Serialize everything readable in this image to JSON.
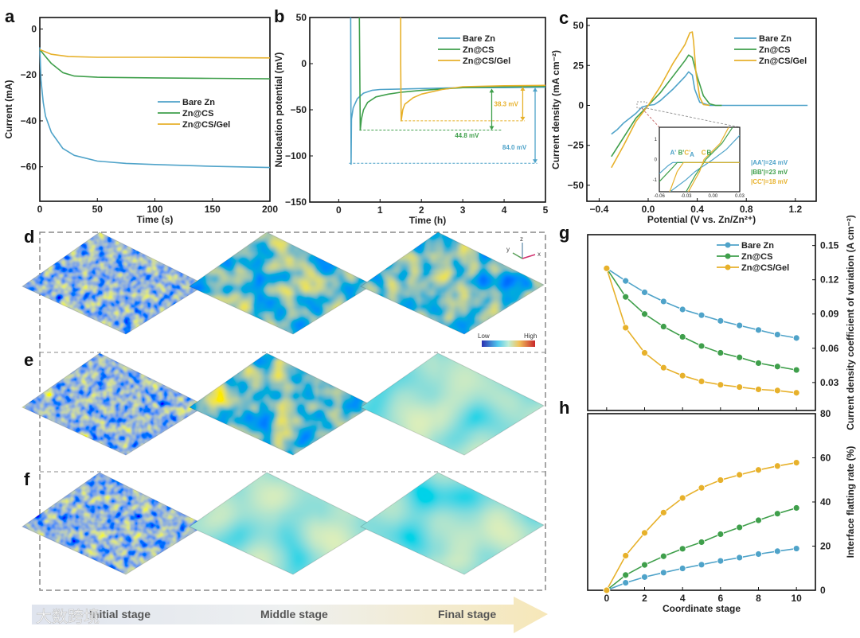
{
  "colors": {
    "bare": "#4fa3c9",
    "cs": "#3f9f4b",
    "gel": "#e7b12b"
  },
  "panels": {
    "a": "a",
    "b": "b",
    "c": "c",
    "d": "d",
    "e": "e",
    "f": "f",
    "g": "g",
    "h": "h"
  },
  "heatmap": {
    "legend_low": "Low",
    "legend_high": "High",
    "axis_x": "x",
    "axis_y": "y",
    "axis_z": "z"
  },
  "stages": {
    "initial": "Initial stage",
    "middle": "Middle stage",
    "final": "Final stage"
  },
  "watermark": "大数跨境",
  "chart_data": [
    {
      "id": "a",
      "type": "line",
      "xlabel": "Time (s)",
      "ylabel": "Current (mA)",
      "xlim": [
        0,
        200
      ],
      "ylim": [
        -75,
        5
      ],
      "xticks": [
        0,
        50,
        100,
        150,
        200
      ],
      "yticks": [
        0,
        -20,
        -40,
        -60
      ],
      "legend_position": "center-right",
      "series": [
        {
          "name": "Bare Zn",
          "color": "#4fa3c9",
          "points": [
            [
              0,
              -8
            ],
            [
              1,
              -22
            ],
            [
              3,
              -32
            ],
            [
              5,
              -38
            ],
            [
              10,
              -45
            ],
            [
              20,
              -52
            ],
            [
              30,
              -55
            ],
            [
              50,
              -57.5
            ],
            [
              75,
              -58.5
            ],
            [
              100,
              -59
            ],
            [
              150,
              -59.8
            ],
            [
              200,
              -60.3
            ]
          ]
        },
        {
          "name": "Zn@CS",
          "color": "#3f9f4b",
          "points": [
            [
              0,
              -9
            ],
            [
              5,
              -12
            ],
            [
              10,
              -15
            ],
            [
              20,
              -19
            ],
            [
              30,
              -20.5
            ],
            [
              50,
              -21
            ],
            [
              100,
              -21.3
            ],
            [
              150,
              -21.5
            ],
            [
              200,
              -21.7
            ]
          ]
        },
        {
          "name": "Zn@CS/Gel",
          "color": "#e7b12b",
          "points": [
            [
              0,
              -9
            ],
            [
              10,
              -11
            ],
            [
              25,
              -12
            ],
            [
              50,
              -12.3
            ],
            [
              100,
              -12.3
            ],
            [
              200,
              -12.6
            ]
          ]
        }
      ]
    },
    {
      "id": "b",
      "type": "line",
      "xlabel": "Time (h)",
      "ylabel": "Nucleation potential (mV)",
      "xlim": [
        -0.7,
        5
      ],
      "ylim": [
        -150,
        50
      ],
      "xticks": [
        0,
        1,
        2,
        3,
        4,
        5
      ],
      "yticks": [
        50,
        0,
        -50,
        -100,
        -150
      ],
      "legend_position": "top-right",
      "series": [
        {
          "name": "Bare Zn",
          "color": "#4fa3c9",
          "points": [
            [
              0.29,
              50
            ],
            [
              0.3,
              -109
            ],
            [
              0.31,
              -60
            ],
            [
              0.35,
              -48
            ],
            [
              0.45,
              -38
            ],
            [
              0.6,
              -32
            ],
            [
              0.8,
              -29
            ],
            [
              1,
              -28
            ],
            [
              2,
              -27
            ],
            [
              3,
              -26
            ],
            [
              4,
              -26
            ],
            [
              5,
              -25.5
            ]
          ]
        },
        {
          "name": "Zn@CS",
          "color": "#3f9f4b",
          "points": [
            [
              0.5,
              50
            ],
            [
              0.52,
              -72
            ],
            [
              0.55,
              -60
            ],
            [
              0.6,
              -50
            ],
            [
              0.7,
              -42
            ],
            [
              0.9,
              -36
            ],
            [
              1.2,
              -33
            ],
            [
              1.5,
              -31
            ],
            [
              2,
              -29
            ],
            [
              3,
              -26
            ],
            [
              4,
              -25
            ],
            [
              5,
              -24.5
            ]
          ]
        },
        {
          "name": "Zn@CS/Gel",
          "color": "#e7b12b",
          "points": [
            [
              1.5,
              50
            ],
            [
              1.5,
              0
            ],
            [
              1.51,
              -62
            ],
            [
              1.55,
              -50
            ],
            [
              1.6,
              -44
            ],
            [
              1.8,
              -37
            ],
            [
              2,
              -33
            ],
            [
              2.5,
              -28
            ],
            [
              3,
              -25
            ],
            [
              4,
              -24
            ],
            [
              5,
              -23.5
            ]
          ]
        }
      ],
      "annotations": [
        {
          "label": "38.3 mV",
          "color": "#e7b12b",
          "arrow_x": 4.45,
          "from": -25,
          "to": -62,
          "dash_from_x": 1.5,
          "dash_to_x": 4.5,
          "label_x": 4.05,
          "label_y": -46
        },
        {
          "label": "44.8 mV",
          "color": "#3f9f4b",
          "arrow_x": 3.7,
          "from": -27,
          "to": -72,
          "dash_from_x": 0.5,
          "dash_to_x": 3.95,
          "label_x": 3.1,
          "label_y": -80
        },
        {
          "label": "84.0 mV",
          "color": "#4fa3c9",
          "arrow_x": 4.75,
          "from": -26,
          "to": -108,
          "dash_from_x": 0.25,
          "dash_to_x": 4.8,
          "label_x": 4.25,
          "label_y": -93
        }
      ]
    },
    {
      "id": "c",
      "type": "line",
      "xlabel": "Potential (V vs. Zn/Zn²⁺)",
      "ylabel": "Current density (mA cm⁻²)",
      "xlim": [
        -0.5,
        1.37
      ],
      "ylim": [
        -60,
        54.5
      ],
      "xticks": [
        -0.4,
        0.0,
        0.4,
        0.8,
        1.2
      ],
      "xtick_labels": [
        "−0.4",
        "0.0",
        "0.4",
        "0.8",
        "1.2"
      ],
      "yticks": [
        50,
        25,
        0,
        -25,
        -50
      ],
      "legend_position": "top-right",
      "series": [
        {
          "name": "Bare Zn",
          "color": "#4fa3c9",
          "points": [
            [
              -0.3,
              -18
            ],
            [
              -0.25,
              -15
            ],
            [
              -0.2,
              -11
            ],
            [
              -0.1,
              -5
            ],
            [
              -0.05,
              -1
            ],
            [
              0,
              0
            ],
            [
              0.05,
              0.5
            ],
            [
              0.1,
              3
            ],
            [
              0.2,
              10
            ],
            [
              0.3,
              18
            ],
            [
              0.33,
              21
            ],
            [
              0.36,
              19
            ],
            [
              0.38,
              10
            ],
            [
              0.42,
              2
            ],
            [
              0.5,
              0
            ],
            [
              1.3,
              0
            ]
          ]
        },
        {
          "name": "Zn@CS",
          "color": "#3f9f4b",
          "points": [
            [
              -0.3,
              -32
            ],
            [
              -0.2,
              -20
            ],
            [
              -0.1,
              -8
            ],
            [
              0,
              0
            ],
            [
              0.1,
              8
            ],
            [
              0.2,
              18
            ],
            [
              0.3,
              28
            ],
            [
              0.33,
              31.5
            ],
            [
              0.36,
              30
            ],
            [
              0.4,
              18
            ],
            [
              0.45,
              6
            ],
            [
              0.5,
              1
            ],
            [
              0.55,
              0
            ],
            [
              0.6,
              0
            ]
          ]
        },
        {
          "name": "Zn@CS/Gel",
          "color": "#e7b12b",
          "points": [
            [
              -0.3,
              -39
            ],
            [
              -0.2,
              -25
            ],
            [
              -0.1,
              -10
            ],
            [
              0,
              0
            ],
            [
              0.1,
              12
            ],
            [
              0.2,
              26
            ],
            [
              0.3,
              38
            ],
            [
              0.34,
              45.5
            ],
            [
              0.36,
              46
            ],
            [
              0.37,
              40
            ],
            [
              0.39,
              20
            ],
            [
              0.42,
              5
            ],
            [
              0.45,
              0.5
            ],
            [
              0.5,
              0
            ]
          ]
        }
      ],
      "inset": {
        "xlim": [
          -0.06,
          0.03
        ],
        "ylim": [
          -1.6,
          1.6
        ],
        "xticks": [
          -0.06,
          -0.03,
          0.0,
          0.03
        ],
        "xtick_labels": [
          "-0.06",
          "-0.03",
          "0.00",
          "0.03"
        ],
        "yticks": [
          1,
          0,
          -1
        ],
        "ytick_labels": [
          "1",
          "0",
          "-1"
        ],
        "point_labels": [
          {
            "text": "A'",
            "x": -0.048,
            "y": 0.15,
            "color": "#4fa3c9"
          },
          {
            "text": "B'",
            "x": -0.039,
            "y": 0.15,
            "color": "#3f9f4b"
          },
          {
            "text": "C'",
            "x": -0.032,
            "y": 0.15,
            "color": "#e7b12b"
          },
          {
            "text": "A",
            "x": -0.026,
            "y": 0.05,
            "color": "#4fa3c9"
          },
          {
            "text": "C",
            "x": -0.013,
            "y": 0.15,
            "color": "#e7b12b"
          },
          {
            "text": "B",
            "x": -0.007,
            "y": 0.15,
            "color": "#3f9f4b"
          }
        ],
        "notes": [
          {
            "text": "|AA'|=24 mV",
            "color": "#4fa3c9"
          },
          {
            "text": "|BB'|=23 mV",
            "color": "#3f9f4b"
          },
          {
            "text": "|CC'|=18 mV",
            "color": "#e7b12b"
          }
        ]
      }
    },
    {
      "id": "g",
      "type": "line",
      "xlabel": "",
      "ylabel": "Current density coefficient of variation (A cm⁻²)",
      "xlim": [
        -1,
        11
      ],
      "ylim": [
        0.0055,
        0.1595
      ],
      "xticks": [
        0,
        2,
        4,
        6,
        8,
        10
      ],
      "yticks": [
        0.15,
        0.12,
        0.09,
        0.06,
        0.03
      ],
      "ytick_labels": [
        "0.15",
        "0.12",
        "0.09",
        "0.06",
        "0.03"
      ],
      "legend_position": "top-right",
      "x": [
        0,
        1,
        2,
        3,
        4,
        5,
        6,
        7,
        8,
        9,
        10
      ],
      "series": [
        {
          "name": "Bare Zn",
          "color": "#4fa3c9",
          "values": [
            0.13,
            0.119,
            0.109,
            0.101,
            0.094,
            0.089,
            0.084,
            0.08,
            0.076,
            0.072,
            0.069
          ]
        },
        {
          "name": "Zn@CS",
          "color": "#3f9f4b",
          "values": [
            0.13,
            0.105,
            0.09,
            0.079,
            0.07,
            0.062,
            0.056,
            0.052,
            0.047,
            0.044,
            0.041
          ]
        },
        {
          "name": "Zn@CS/Gel",
          "color": "#e7b12b",
          "values": [
            0.13,
            0.078,
            0.056,
            0.043,
            0.036,
            0.031,
            0.028,
            0.026,
            0.024,
            0.023,
            0.021
          ]
        }
      ]
    },
    {
      "id": "h",
      "type": "line",
      "xlabel": "Coordinate stage",
      "ylabel": "Interface flatting rate (%)",
      "xlim": [
        -1,
        11
      ],
      "ylim": [
        0,
        80
      ],
      "xticks": [
        0,
        2,
        4,
        6,
        8,
        10
      ],
      "yticks": [
        80,
        60,
        40,
        20,
        0
      ],
      "x": [
        0,
        1,
        2,
        3,
        4,
        5,
        6,
        7,
        8,
        9,
        10
      ],
      "series": [
        {
          "name": "Bare Zn",
          "color": "#4fa3c9",
          "values": [
            0,
            3.4,
            6.0,
            8.0,
            9.9,
            11.6,
            13.3,
            14.8,
            16.4,
            17.7,
            18.9
          ]
        },
        {
          "name": "Zn@CS",
          "color": "#3f9f4b",
          "values": [
            0,
            6.9,
            11.5,
            15.4,
            18.8,
            21.8,
            25.4,
            28.5,
            31.7,
            34.7,
            37.3
          ]
        },
        {
          "name": "Zn@CS/Gel",
          "color": "#e7b12b",
          "values": [
            0,
            15.7,
            26.0,
            35.2,
            41.8,
            46.4,
            49.9,
            52.3,
            54.5,
            56.3,
            57.8
          ]
        }
      ]
    }
  ]
}
